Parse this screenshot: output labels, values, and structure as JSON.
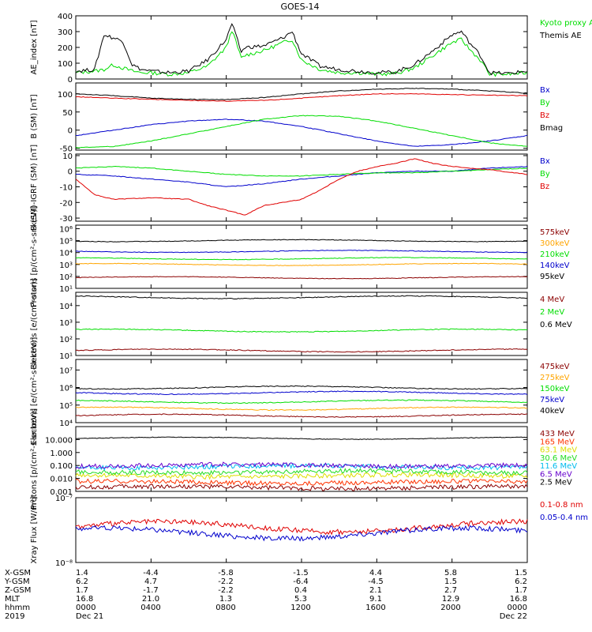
{
  "title": "GOES-14",
  "colors": {
    "black": "#000000",
    "red": "#e00000",
    "green": "#00dd00",
    "blue": "#0000cc",
    "orange": "#ffa500",
    "cyan": "#00bbee",
    "darkred": "#8b0000",
    "yellow": "#dddd00",
    "lime": "#22dd22"
  },
  "ephemeris": {
    "rows": [
      {
        "label": "X-GSM",
        "values": [
          "1.4",
          "-4.4",
          "-5.8",
          "-1.5",
          "4.4",
          "5.8",
          "1.5"
        ]
      },
      {
        "label": "Y-GSM",
        "values": [
          "6.2",
          "4.7",
          "-2.2",
          "-6.4",
          "-4.5",
          "1.5",
          "6.2"
        ]
      },
      {
        "label": "Z-GSM",
        "values": [
          "1.7",
          "-1.7",
          "-2.2",
          "0.4",
          "2.1",
          "2.7",
          "1.7"
        ]
      },
      {
        "label": "MLT",
        "values": [
          "16.8",
          "21.0",
          "1.3",
          "5.3",
          "9.1",
          "12.9",
          "16.8"
        ]
      },
      {
        "label": "hhmm",
        "values": [
          "0000",
          "0400",
          "0800",
          "1200",
          "1600",
          "2000",
          "0000"
        ]
      },
      {
        "label": "2019",
        "values": [
          "Dec 21",
          "",
          "",
          "",
          "",
          "",
          "Dec 22"
        ]
      }
    ]
  },
  "chart_data": [
    {
      "type": "line",
      "ylabel": "AE_index [nT]",
      "yscale": "linear",
      "ylim": [
        0,
        400
      ],
      "yticks": [
        "0",
        "100",
        "200",
        "300",
        "400"
      ],
      "x_hours": [
        0,
        24
      ],
      "series": [
        {
          "name": "Kyoto proxy AE",
          "color": "#00dd00",
          "x": [
            0,
            1,
            1.5,
            2,
            2.5,
            3,
            3.5,
            4,
            5,
            6,
            7,
            8,
            8.3,
            8.8,
            9,
            10,
            11,
            11.5,
            12,
            13,
            14,
            15,
            16,
            17,
            18,
            19,
            20,
            20.5,
            21,
            21.5,
            22,
            23,
            24
          ],
          "values": [
            40,
            50,
            60,
            90,
            70,
            50,
            40,
            40,
            30,
            40,
            80,
            200,
            310,
            130,
            150,
            180,
            230,
            250,
            120,
            60,
            40,
            40,
            30,
            35,
            70,
            150,
            230,
            250,
            180,
            120,
            30,
            30,
            40
          ]
        },
        {
          "name": "Themis AE",
          "color": "#000000",
          "x": [
            0,
            1,
            1.5,
            2,
            2.5,
            3,
            3.5,
            4,
            5,
            6,
            7,
            8,
            8.3,
            8.8,
            9,
            10,
            11,
            11.5,
            12,
            13,
            14,
            15,
            16,
            17,
            18,
            19,
            20,
            20.5,
            21,
            21.5,
            22,
            23,
            24
          ],
          "values": [
            50,
            60,
            280,
            260,
            240,
            90,
            60,
            50,
            40,
            50,
            120,
            250,
            350,
            170,
            200,
            210,
            260,
            300,
            160,
            80,
            60,
            50,
            40,
            45,
            90,
            180,
            280,
            300,
            220,
            150,
            40,
            35,
            50
          ]
        }
      ]
    },
    {
      "type": "line",
      "ylabel": "B (SM) [nT]",
      "yscale": "linear",
      "ylim": [
        -55,
        130
      ],
      "yticks": [
        "-50",
        "0",
        "50",
        "100"
      ],
      "x_hours": [
        0,
        24
      ],
      "series": [
        {
          "name": "Bx",
          "color": "#0000cc",
          "x": [
            0,
            2,
            4,
            6,
            8,
            10,
            12,
            14,
            16,
            18,
            20,
            22,
            24
          ],
          "values": [
            -15,
            0,
            15,
            25,
            30,
            25,
            10,
            -10,
            -30,
            -45,
            -40,
            -30,
            -15
          ]
        },
        {
          "name": "By",
          "color": "#00dd00",
          "x": [
            0,
            2,
            4,
            6,
            8,
            10,
            12,
            14,
            16,
            18,
            20,
            22,
            24
          ],
          "values": [
            -48,
            -45,
            -30,
            -10,
            10,
            30,
            40,
            38,
            25,
            5,
            -15,
            -35,
            -45
          ]
        },
        {
          "name": "Bz",
          "color": "#e00000",
          "x": [
            0,
            2,
            4,
            6,
            8,
            10,
            12,
            14,
            16,
            18,
            20,
            22,
            24
          ],
          "values": [
            92,
            88,
            85,
            82,
            80,
            82,
            88,
            95,
            100,
            100,
            98,
            96,
            95
          ]
        },
        {
          "name": "Bmag",
          "color": "#000000",
          "x": [
            0,
            2,
            4,
            6,
            8,
            10,
            12,
            14,
            16,
            18,
            20,
            22,
            24
          ],
          "values": [
            100,
            95,
            88,
            85,
            84,
            90,
            100,
            108,
            113,
            115,
            113,
            108,
            102
          ]
        }
      ]
    },
    {
      "type": "line",
      "ylabel": "B (SM)-IGRF (SM) [nT]",
      "yscale": "linear",
      "ylim": [
        -32,
        11
      ],
      "yticks": [
        "-30",
        "-20",
        "-10",
        "0",
        "10"
      ],
      "x_hours": [
        0,
        24
      ],
      "series": [
        {
          "name": "Bx",
          "color": "#0000cc",
          "x": [
            0,
            2,
            4,
            6,
            8,
            10,
            12,
            14,
            16,
            18,
            20,
            22,
            24
          ],
          "values": [
            -2,
            -3,
            -5,
            -7,
            -10,
            -8,
            -5,
            -3,
            -1,
            0,
            0,
            2,
            3
          ]
        },
        {
          "name": "By",
          "color": "#00dd00",
          "x": [
            0,
            2,
            4,
            6,
            8,
            10,
            12,
            14,
            16,
            18,
            20,
            22,
            24
          ],
          "values": [
            2,
            3,
            2,
            0,
            -2,
            -3,
            -3,
            -2,
            -1,
            -1,
            0,
            1,
            2
          ]
        },
        {
          "name": "Bz",
          "color": "#e00000",
          "x": [
            0,
            1,
            2,
            4,
            6,
            7,
            8,
            9,
            10,
            11,
            12,
            13,
            14,
            15,
            16,
            17,
            18,
            19,
            20,
            22,
            24
          ],
          "values": [
            -5,
            -15,
            -18,
            -17,
            -18,
            -22,
            -25,
            -28,
            -22,
            -20,
            -18,
            -12,
            -5,
            0,
            3,
            5,
            8,
            5,
            3,
            1,
            -2
          ]
        }
      ]
    },
    {
      "type": "line",
      "ylabel": "Protons [p/(cm²-s-sr-keV)]",
      "yscale": "log",
      "ylim_exp": [
        1,
        6.3
      ],
      "yticks": [
        "10¹",
        "10²",
        "10³",
        "10⁴",
        "10⁵",
        "10⁶"
      ],
      "x_hours": [
        0,
        24
      ],
      "series": [
        {
          "name": "575keV",
          "color": "#8b0000",
          "level_exp": 1.9
        },
        {
          "name": "300keV",
          "color": "#ffa500",
          "level_exp": 3.0
        },
        {
          "name": "210keV",
          "color": "#00dd00",
          "level_exp": 3.5
        },
        {
          "name": "140keV",
          "color": "#0000cc",
          "level_exp": 4.1
        },
        {
          "name": "95keV",
          "color": "#000000",
          "level_exp": 5.0
        }
      ]
    },
    {
      "type": "line",
      "ylabel": "Electrons [e/(cm²-s-sr)]",
      "yscale": "log",
      "ylim_exp": [
        1,
        4.8
      ],
      "yticks": [
        "10¹",
        "10²",
        "10³",
        "10⁴"
      ],
      "x_hours": [
        0,
        24
      ],
      "series": [
        {
          "name": "4 MeV",
          "color": "#8b0000",
          "level_exp": 1.3
        },
        {
          "name": "2 MeV",
          "color": "#00dd00",
          "level_exp": 2.5
        },
        {
          "name": "0.6 MeV",
          "color": "#000000",
          "level_exp": 4.5
        }
      ]
    },
    {
      "type": "line",
      "ylabel": "Electrons [e/(cm²-s-sr-keV)]",
      "yscale": "log",
      "ylim_exp": [
        4,
        7.6
      ],
      "yticks": [
        "10⁴",
        "10⁵",
        "10⁶",
        "10⁷"
      ],
      "x_hours": [
        0,
        24
      ],
      "series": [
        {
          "name": "475keV",
          "color": "#8b0000",
          "level_exp": 4.4
        },
        {
          "name": "275keV",
          "color": "#ffa500",
          "level_exp": 4.8
        },
        {
          "name": "150keV",
          "color": "#00dd00",
          "level_exp": 5.2
        },
        {
          "name": "75keV",
          "color": "#0000cc",
          "level_exp": 5.7
        },
        {
          "name": "40keV",
          "color": "#000000",
          "level_exp": 6.0
        }
      ]
    },
    {
      "type": "line",
      "ylabel": "Protons [p/(cm²-s-sr-keV)]",
      "yscale": "log",
      "ylim_exp": [
        -3,
        2
      ],
      "yticks": [
        "0.001",
        "0.010",
        "0.100",
        "1.000",
        "10.000"
      ],
      "x_hours": [
        0,
        24
      ],
      "series": [
        {
          "name": "433 MeV",
          "color": "#8b0000",
          "level_exp": -2.7
        },
        {
          "name": "165 MeV",
          "color": "#ff3300",
          "level_exp": -2.3
        },
        {
          "name": "63.1 MeV",
          "color": "#dddd00",
          "level_exp": -1.8
        },
        {
          "name": "30.6 MeV",
          "color": "#22dd22",
          "level_exp": -1.5
        },
        {
          "name": "11.6 MeV",
          "color": "#00bbee",
          "level_exp": -1.1
        },
        {
          "name": "6.5 MeV",
          "color": "#6600cc",
          "level_exp": -1.0
        },
        {
          "name": "2.5 MeV",
          "color": "#000000",
          "level_exp": 1.1
        }
      ]
    },
    {
      "type": "line",
      "ylabel": "Xray Flux [W/m²]",
      "yscale": "log",
      "ylim_exp": [
        -8,
        -7
      ],
      "yticks": [
        "10⁻⁸",
        "10⁻⁷"
      ],
      "x_hours": [
        0,
        24
      ],
      "series": [
        {
          "name": "0.1-0.8 nm",
          "color": "#e00000",
          "level_exp": -7.45
        },
        {
          "name": "0.05-0.4 nm",
          "color": "#0000cc",
          "level_exp": -7.55
        }
      ]
    }
  ]
}
